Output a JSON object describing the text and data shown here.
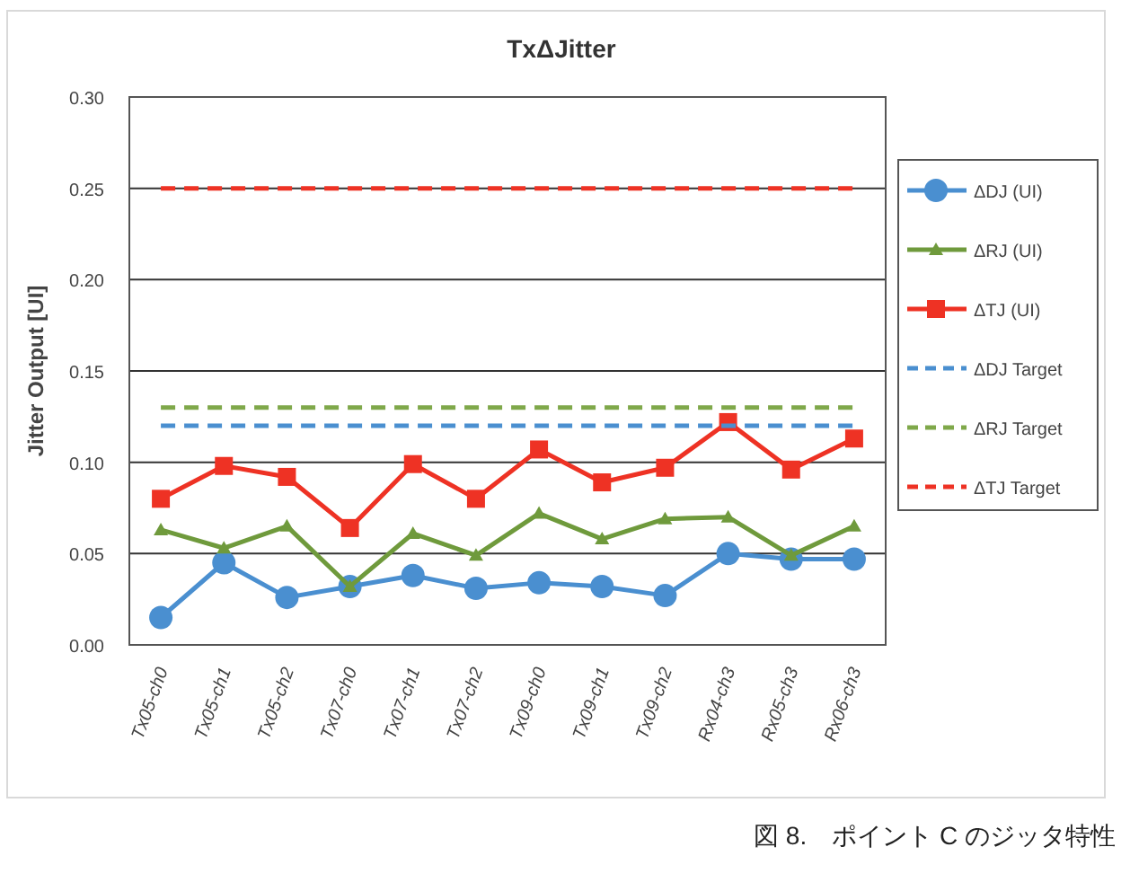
{
  "chart_data": {
    "type": "line",
    "title": "TxΔJitter",
    "ylabel": "Jitter Output [UI]",
    "categories": [
      "Tx05-ch0",
      "Tx05-ch1",
      "Tx05-ch2",
      "Tx07-ch0",
      "Tx07-ch1",
      "Tx07-ch2",
      "Tx09-ch0",
      "Tx09-ch1",
      "Tx09-ch2",
      "Rx04-ch3",
      "Rx05-ch3",
      "Rx06-ch3"
    ],
    "series": [
      {
        "name": "ΔDJ (UI)",
        "color": "#4a8fd0",
        "marker": "circle",
        "values": [
          0.015,
          0.045,
          0.026,
          0.032,
          0.038,
          0.031,
          0.034,
          0.032,
          0.027,
          0.05,
          0.047,
          0.047
        ]
      },
      {
        "name": "ΔRJ (UI)",
        "color": "#6f9a3c",
        "marker": "triangle",
        "values": [
          0.063,
          0.053,
          0.065,
          0.032,
          0.061,
          0.049,
          0.072,
          0.058,
          0.069,
          0.07,
          0.049,
          0.065
        ]
      },
      {
        "name": "ΔTJ (UI)",
        "color": "#ee3224",
        "marker": "square",
        "values": [
          0.08,
          0.098,
          0.092,
          0.064,
          0.099,
          0.08,
          0.107,
          0.089,
          0.097,
          0.122,
          0.096,
          0.113
        ]
      },
      {
        "name": "ΔDJ Target",
        "color": "#4a8fd0",
        "marker": "none",
        "line_style": "dashed",
        "values": [
          0.12,
          0.12,
          0.12,
          0.12,
          0.12,
          0.12,
          0.12,
          0.12,
          0.12,
          0.12,
          0.12,
          0.12
        ]
      },
      {
        "name": "ΔRJ Target",
        "color": "#7fa84a",
        "marker": "none",
        "line_style": "dashed",
        "values": [
          0.13,
          0.13,
          0.13,
          0.13,
          0.13,
          0.13,
          0.13,
          0.13,
          0.13,
          0.13,
          0.13,
          0.13
        ]
      },
      {
        "name": "ΔTJ Target",
        "color": "#ee3224",
        "marker": "none",
        "line_style": "dashed",
        "values": [
          0.25,
          0.25,
          0.25,
          0.25,
          0.25,
          0.25,
          0.25,
          0.25,
          0.25,
          0.25,
          0.25,
          0.25
        ]
      }
    ],
    "ylim": [
      0,
      0.3
    ],
    "yticks": [
      {
        "value": 0,
        "label": "0.00"
      },
      {
        "value": 0.05,
        "label": "0.05"
      },
      {
        "value": 0.1,
        "label": "0.10"
      },
      {
        "value": 0.15,
        "label": "0.15"
      },
      {
        "value": 0.2,
        "label": "0.20"
      },
      {
        "value": 0.25,
        "label": "0.25"
      },
      {
        "value": 0.3,
        "label": "0.30"
      }
    ],
    "grid": "y",
    "legend": "right",
    "annotations": [
      "図 8.　ポイント C のジッタ特性"
    ]
  }
}
